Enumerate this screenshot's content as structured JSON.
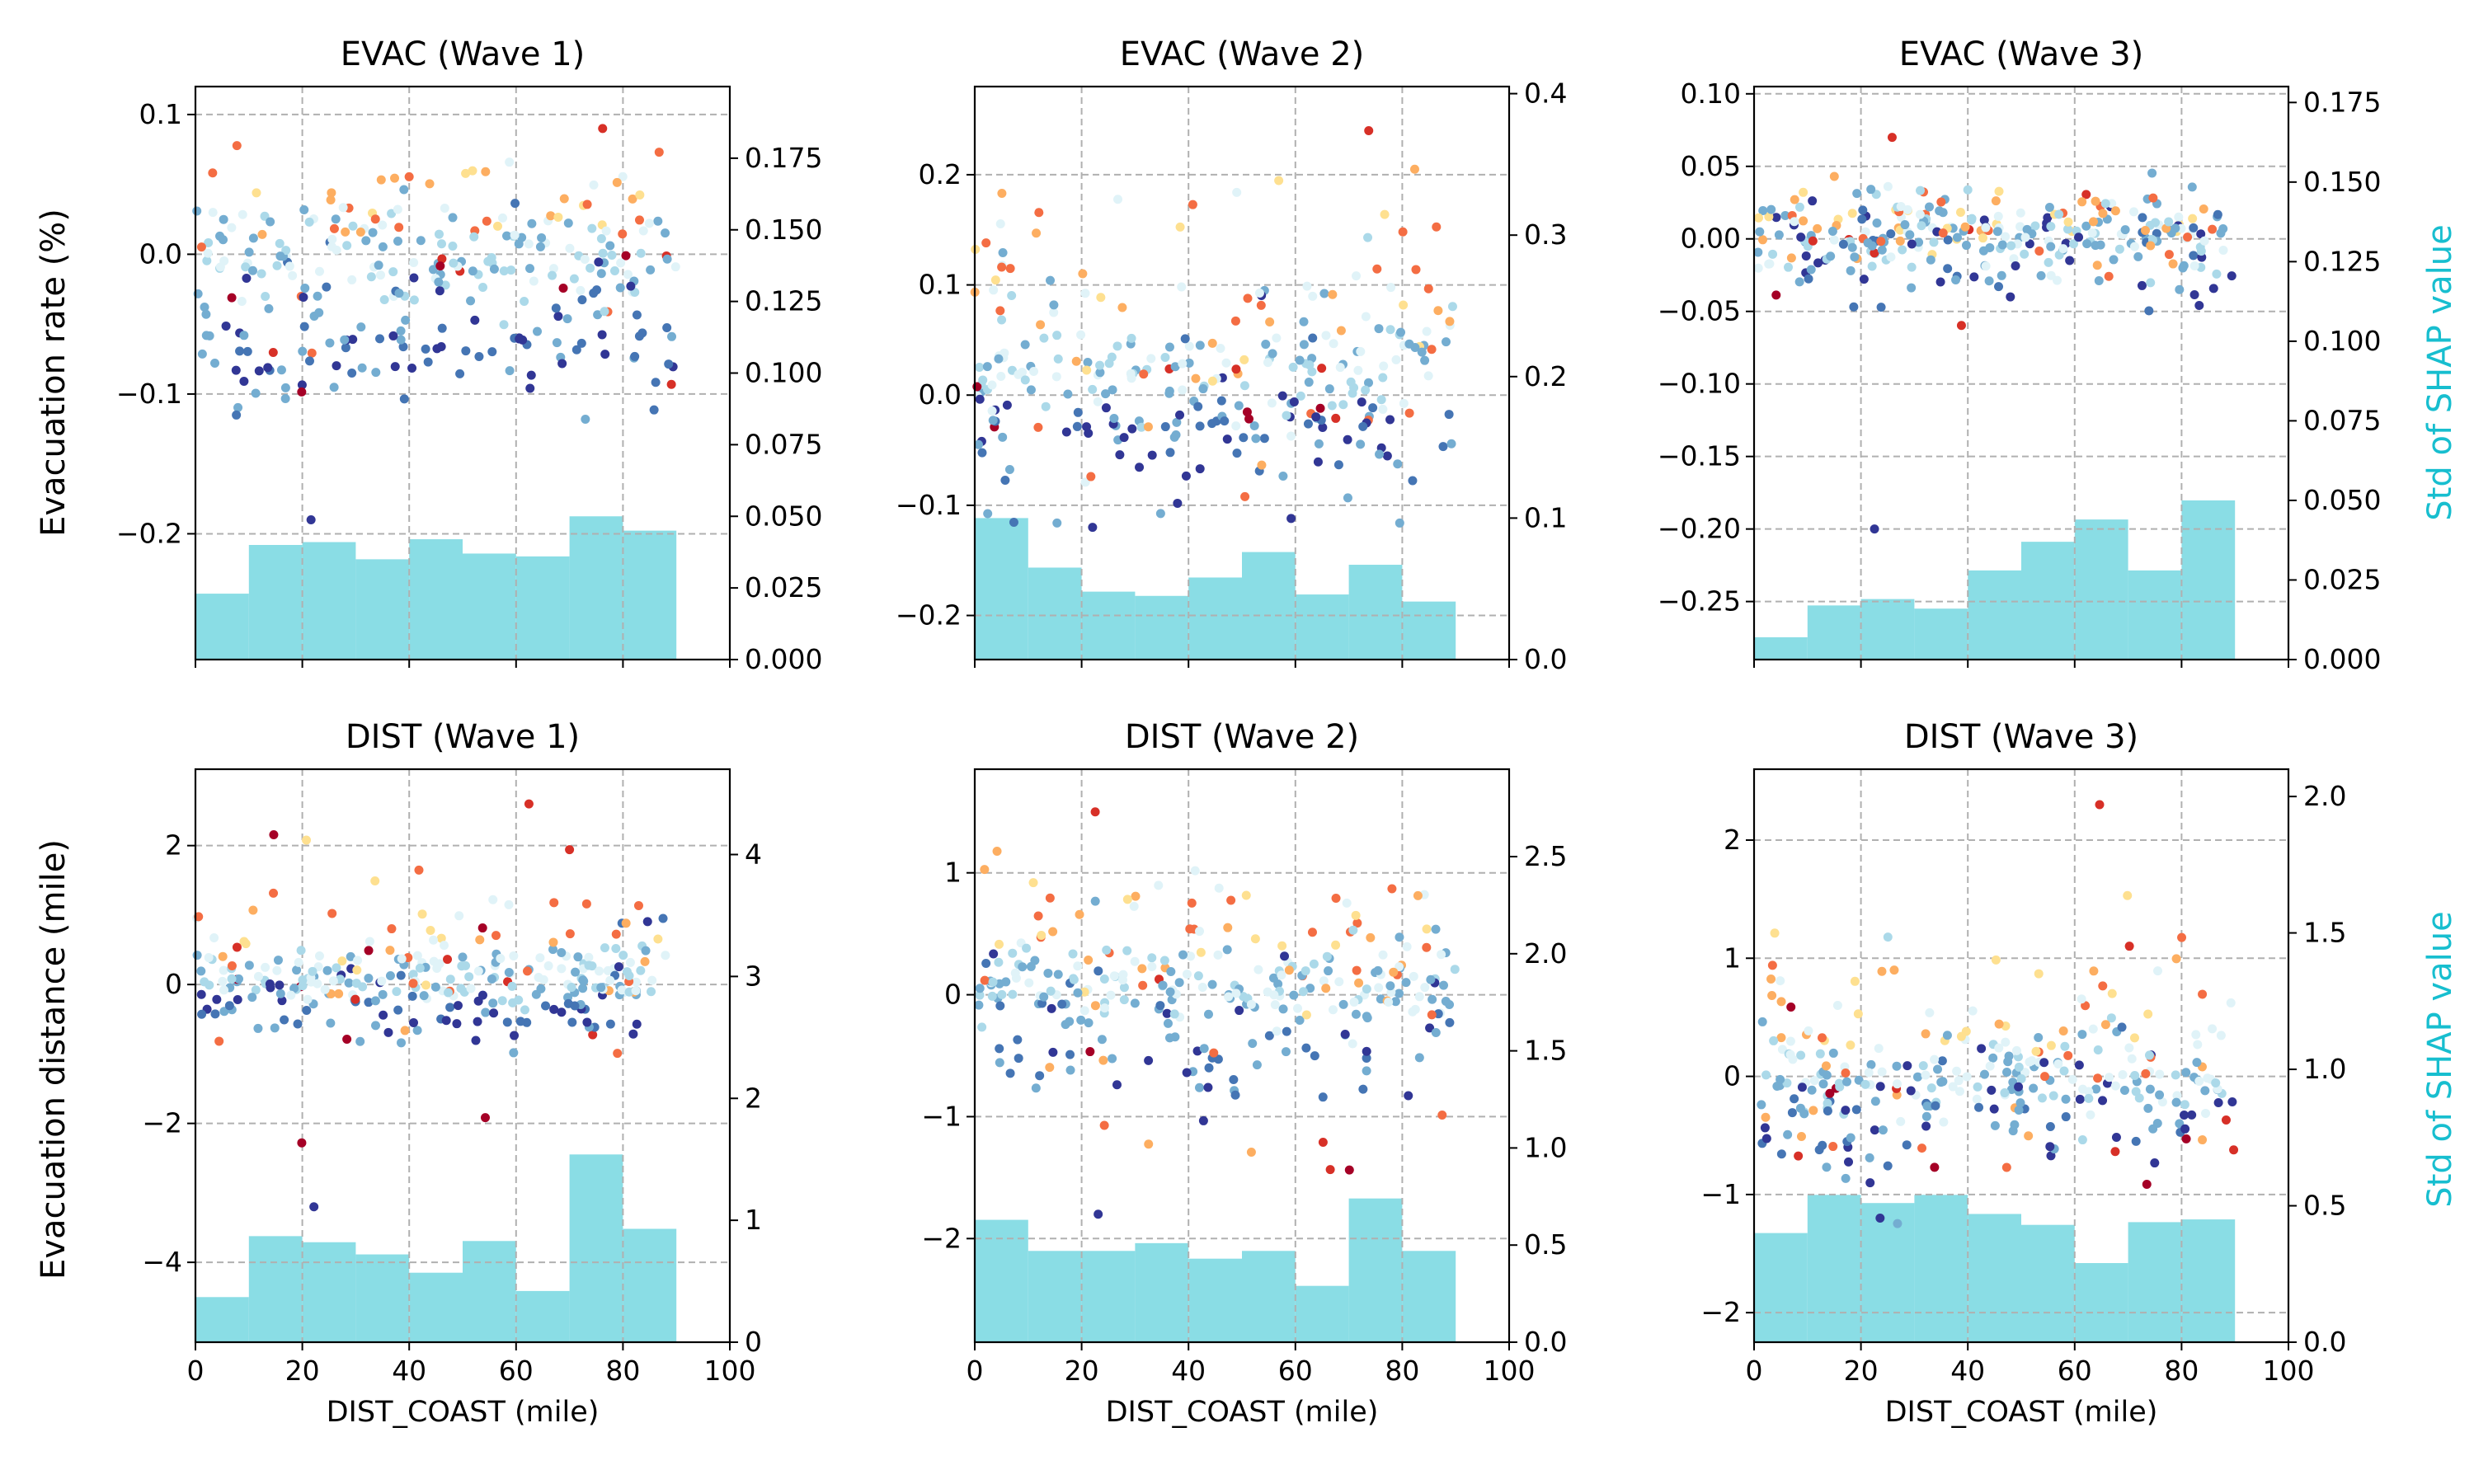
{
  "figure": {
    "shared_xlabel": "DIST_COAST (mile)",
    "left_ylabels": [
      "Evacuation rate (%)",
      "Evacuation distance (mile)"
    ],
    "right_ylabel": "Std of SHAP value",
    "hist_color": "#8adde5",
    "right_label_color": "#17becf",
    "grid": true,
    "grid_style": "dashed"
  },
  "chart_data": [
    {
      "type": "scatter",
      "title": "EVAC (Wave 1)",
      "xlim": [
        0,
        100
      ],
      "xticks": [
        0,
        20,
        40,
        60,
        80,
        100
      ],
      "ylim": [
        -0.29,
        0.12
      ],
      "yticks": [
        -0.2,
        -0.1,
        0.0,
        0.1
      ],
      "ytick_labels": [
        "−0.2",
        "−0.1",
        "0.0",
        "0.1"
      ],
      "right_ylim": [
        0,
        0.2
      ],
      "right_yticks": [
        0.0,
        0.025,
        0.05,
        0.075,
        0.1,
        0.125,
        0.15,
        0.175
      ],
      "right_ytick_labels": [
        "0.000",
        "0.025",
        "0.050",
        "0.075",
        "0.100",
        "0.125",
        "0.150",
        "0.175"
      ],
      "histogram": {
        "bin_edges": [
          0,
          10,
          20,
          30,
          40,
          50,
          60,
          70,
          80,
          90
        ],
        "values": [
          0.023,
          0.04,
          0.041,
          0.035,
          0.042,
          0.037,
          0.036,
          0.05,
          0.045
        ]
      },
      "scatter": {
        "x_range": [
          0,
          90
        ],
        "seed": 11,
        "count": 300,
        "center": 0.0,
        "band": 0.02,
        "neg": -0.06,
        "neg_spread": 0.025,
        "pos": 0.03,
        "pos_spread": 0.02,
        "extreme_low": -0.19,
        "extreme_high": 0.09,
        "jitter_low": -0.1,
        "jitter_high": 0.06
      }
    },
    {
      "type": "scatter",
      "title": "EVAC (Wave 2)",
      "xlim": [
        0,
        100
      ],
      "xticks": [
        0,
        20,
        40,
        60,
        80,
        100
      ],
      "ylim": [
        -0.24,
        0.28
      ],
      "yticks": [
        -0.2,
        -0.1,
        0.0,
        0.1,
        0.2
      ],
      "ytick_labels": [
        "−0.2",
        "−0.1",
        "0.0",
        "0.1",
        "0.2"
      ],
      "right_ylim": [
        0,
        0.405
      ],
      "right_yticks": [
        0.0,
        0.1,
        0.2,
        0.3,
        0.4
      ],
      "right_ytick_labels": [
        "0.0",
        "0.1",
        "0.2",
        "0.3",
        "0.4"
      ],
      "histogram": {
        "bin_edges": [
          0,
          10,
          20,
          30,
          40,
          50,
          60,
          70,
          80,
          90
        ],
        "values": [
          0.1,
          0.065,
          0.048,
          0.045,
          0.058,
          0.076,
          0.046,
          0.067,
          0.041
        ]
      },
      "scatter": {
        "x_range": [
          0,
          90
        ],
        "seed": 23,
        "count": 300,
        "center": 0.03,
        "band": 0.03,
        "neg": -0.04,
        "neg_spread": 0.03,
        "pos": 0.08,
        "pos_spread": 0.05,
        "extreme_low": -0.12,
        "extreme_high": 0.24,
        "jitter_low": -0.1,
        "jitter_high": 0.18
      }
    },
    {
      "type": "scatter",
      "title": "EVAC (Wave 3)",
      "xlim": [
        0,
        100
      ],
      "xticks": [
        0,
        20,
        40,
        60,
        80,
        100
      ],
      "ylim": [
        -0.29,
        0.105
      ],
      "yticks": [
        -0.25,
        -0.2,
        -0.15,
        -0.1,
        -0.05,
        0.0,
        0.05,
        0.1
      ],
      "ytick_labels": [
        "−0.25",
        "−0.20",
        "−0.15",
        "−0.10",
        "−0.05",
        "0.00",
        "0.05",
        "0.10"
      ],
      "right_ylim": [
        0,
        0.18
      ],
      "right_yticks": [
        0.0,
        0.025,
        0.05,
        0.075,
        0.1,
        0.125,
        0.15,
        0.175
      ],
      "right_ytick_labels": [
        "0.000",
        "0.025",
        "0.050",
        "0.075",
        "0.100",
        "0.125",
        "0.150",
        "0.175"
      ],
      "histogram": {
        "bin_edges": [
          0,
          10,
          20,
          30,
          40,
          50,
          60,
          70,
          80,
          90
        ],
        "values": [
          0.007,
          0.017,
          0.019,
          0.016,
          0.028,
          0.037,
          0.044,
          0.028,
          0.05
        ]
      },
      "scatter": {
        "x_range": [
          0,
          90
        ],
        "seed": 37,
        "count": 300,
        "center": 0.0,
        "band": 0.015,
        "neg": -0.01,
        "neg_spread": 0.02,
        "pos": 0.01,
        "pos_spread": 0.015,
        "extreme_low": -0.2,
        "extreme_high": 0.07,
        "jitter_low": -0.06,
        "jitter_high": 0.04
      }
    },
    {
      "type": "scatter",
      "title": "DIST (Wave 1)",
      "xlim": [
        0,
        100
      ],
      "xticks": [
        0,
        20,
        40,
        60,
        80,
        100
      ],
      "xlabel": "DIST_COAST (mile)",
      "ylim": [
        -5.15,
        3.1
      ],
      "yticks": [
        -4,
        -2,
        0,
        2
      ],
      "ytick_labels": [
        "−4",
        "−2",
        "0",
        "2"
      ],
      "right_ylim": [
        0,
        4.7
      ],
      "right_yticks": [
        0,
        1,
        2,
        3,
        4
      ],
      "right_ytick_labels": [
        "0",
        "1",
        "2",
        "3",
        "4"
      ],
      "histogram": {
        "bin_edges": [
          0,
          10,
          20,
          30,
          40,
          50,
          60,
          70,
          80,
          90
        ],
        "values": [
          0.37,
          0.87,
          0.82,
          0.72,
          0.57,
          0.83,
          0.42,
          1.54,
          0.93
        ]
      },
      "scatter": {
        "x_range": [
          0,
          88
        ],
        "seed": 41,
        "count": 300,
        "center": 0.1,
        "band": 0.2,
        "neg": -0.3,
        "neg_spread": 0.3,
        "pos": 0.6,
        "pos_spread": 0.5,
        "extreme_low": -3.2,
        "extreme_high": 2.6,
        "jitter_low": -2.6,
        "jitter_high": 2.2
      }
    },
    {
      "type": "scatter",
      "title": "DIST (Wave 2)",
      "xlim": [
        0,
        100
      ],
      "xticks": [
        0,
        20,
        40,
        60,
        80,
        100
      ],
      "xlabel": "DIST_COAST (mile)",
      "ylim": [
        -2.85,
        1.85
      ],
      "yticks": [
        -2,
        -1,
        0,
        1
      ],
      "ytick_labels": [
        "−2",
        "−1",
        "0",
        "1"
      ],
      "right_ylim": [
        0,
        2.95
      ],
      "right_yticks": [
        0.0,
        0.5,
        1.0,
        1.5,
        2.0,
        2.5
      ],
      "right_ytick_labels": [
        "0.0",
        "0.5",
        "1.0",
        "1.5",
        "2.0",
        "2.5"
      ],
      "histogram": {
        "bin_edges": [
          0,
          10,
          20,
          30,
          40,
          50,
          60,
          70,
          80,
          90
        ],
        "values": [
          0.63,
          0.47,
          0.47,
          0.51,
          0.43,
          0.47,
          0.29,
          0.74,
          0.47
        ]
      },
      "scatter": {
        "x_range": [
          0,
          90
        ],
        "seed": 53,
        "count": 300,
        "center": 0.1,
        "band": 0.2,
        "neg": -0.4,
        "neg_spread": 0.3,
        "pos": 0.5,
        "pos_spread": 0.3,
        "extreme_low": -1.8,
        "extreme_high": 1.5,
        "jitter_low": -1.6,
        "jitter_high": 1.1
      }
    },
    {
      "type": "scatter",
      "title": "DIST (Wave 3)",
      "xlim": [
        0,
        100
      ],
      "xticks": [
        0,
        20,
        40,
        60,
        80,
        100
      ],
      "xlabel": "DIST_COAST (mile)",
      "ylim": [
        -2.25,
        2.6
      ],
      "yticks": [
        -2,
        -1,
        0,
        1,
        2
      ],
      "ytick_labels": [
        "−2",
        "−1",
        "0",
        "1",
        "2"
      ],
      "right_ylim": [
        0,
        2.1
      ],
      "right_yticks": [
        0.0,
        0.5,
        1.0,
        1.5,
        2.0
      ],
      "right_ytick_labels": [
        "0.0",
        "0.5",
        "1.0",
        "1.5",
        "2.0"
      ],
      "histogram": {
        "bin_edges": [
          0,
          10,
          20,
          30,
          40,
          50,
          60,
          70,
          80,
          90
        ],
        "values": [
          0.4,
          0.54,
          0.51,
          0.54,
          0.47,
          0.43,
          0.29,
          0.44,
          0.45
        ]
      },
      "scatter": {
        "x_range": [
          0,
          90
        ],
        "seed": 67,
        "count": 300,
        "center": -0.05,
        "band": 0.15,
        "neg": -0.4,
        "neg_spread": 0.25,
        "pos": 0.4,
        "pos_spread": 0.3,
        "extreme_low": -1.2,
        "extreme_high": 2.3,
        "jitter_low": -1.0,
        "jitter_high": 1.6
      }
    }
  ]
}
